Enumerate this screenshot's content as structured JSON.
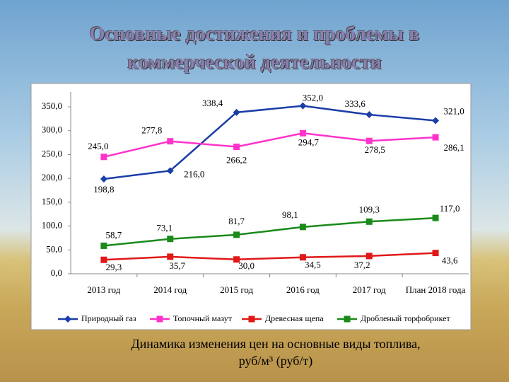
{
  "title": [
    "Основные достижения и проблемы в",
    "коммерческой деятельности"
  ],
  "caption": [
    "Динамика изменения цен на основные виды топлива,",
    "руб/м³ (руб/т)"
  ],
  "chart_data": {
    "type": "line",
    "categories": [
      "2013 год",
      "2014 год",
      "2015 год",
      "2016 год",
      "2017 год",
      "План 2018 года"
    ],
    "ylim": [
      0,
      350
    ],
    "yticks": [
      {
        "value": 0,
        "label": "0,0"
      },
      {
        "value": 50,
        "label": "50,0"
      },
      {
        "value": 100,
        "label": "100,0"
      },
      {
        "value": 150,
        "label": "150,0"
      },
      {
        "value": 200,
        "label": "200,0"
      },
      {
        "value": 250,
        "label": "250,0"
      },
      {
        "value": 300,
        "label": "300,0"
      },
      {
        "value": 350,
        "label": "350,0"
      }
    ],
    "series": [
      {
        "name": "Природный газ",
        "color": "#1a3da8",
        "marker": "diamond",
        "values": [
          198.8,
          216.0,
          338.4,
          352.0,
          333.6,
          321.0
        ],
        "value_labels": [
          "198,8",
          "216,0",
          "338,4",
          "352,0",
          "333,6",
          "321,0"
        ]
      },
      {
        "name": "Топочный мазут",
        "color": "#ff33cc",
        "marker": "square",
        "values": [
          245.0,
          277.8,
          266.2,
          294.7,
          278.5,
          286.1
        ],
        "value_labels": [
          "245,0",
          "277,8",
          "266,2",
          "294,7",
          "278,5",
          "286,1"
        ]
      },
      {
        "name": "Древесная щепа",
        "color": "#e01818",
        "marker": "square",
        "values": [
          29.3,
          35.7,
          30.0,
          34.5,
          37.2,
          43.6
        ],
        "value_labels": [
          "29,3",
          "35,7",
          "30,0",
          "34,5",
          "37,2",
          "43,6"
        ]
      },
      {
        "name": "Дробленый торфобрикет",
        "color": "#1a8a1a",
        "marker": "square",
        "values": [
          58.7,
          73.1,
          81.7,
          98.1,
          109.3,
          117.0
        ],
        "value_labels": [
          "58,7",
          "73,1",
          "81,7",
          "98,1",
          "109,3",
          "117,0"
        ]
      }
    ]
  }
}
